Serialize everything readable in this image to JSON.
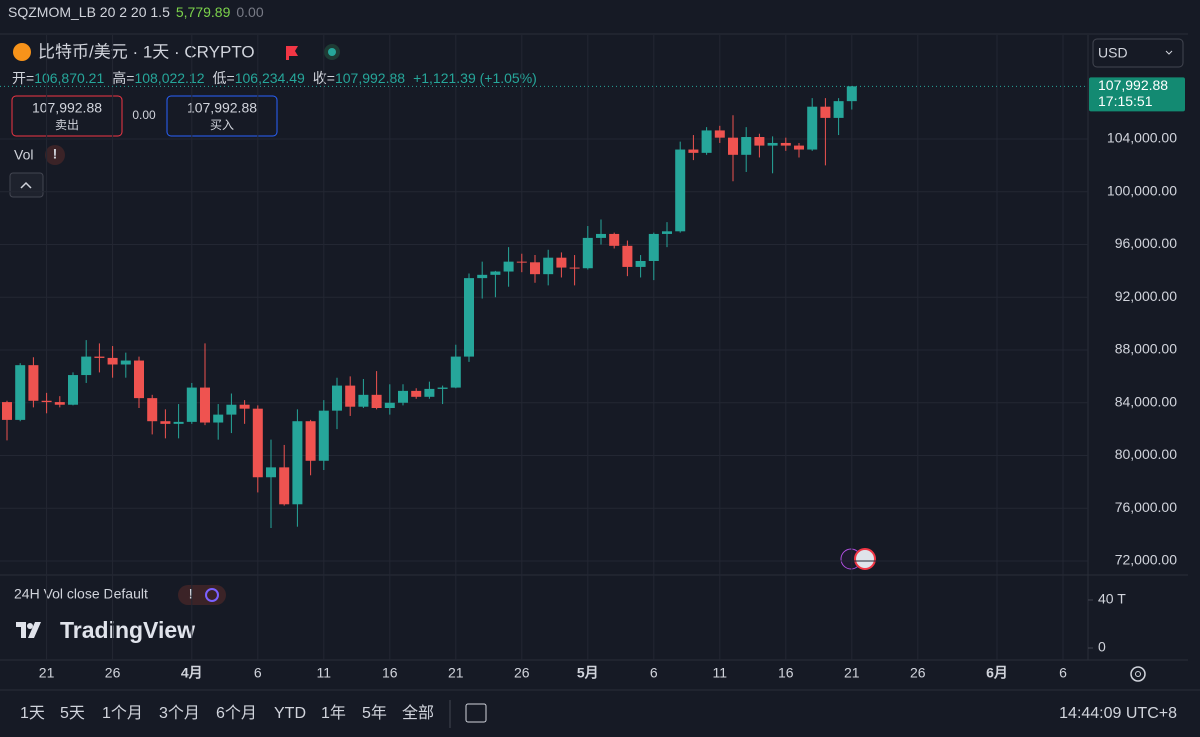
{
  "indicator": {
    "name": "SQZMOM_LB 20 2 20 1.5",
    "value1": "5,779.89",
    "value2": "0.00"
  },
  "symbol": "比特币/美元 · 1天 · CRYPTO",
  "ohlc": {
    "open_label": "开=",
    "open": "106,870.21",
    "high_label": "高=",
    "high": "108,022.12",
    "low_label": "低=",
    "low": "106,234.49",
    "close_label": "收=",
    "close": "107,992.88",
    "change": "+1,121.39 (+1.05%)"
  },
  "trade": {
    "sell_price": "107,992.88",
    "sell_label": "卖出",
    "spread": "0.00",
    "buy_price": "107,992.88",
    "buy_label": "买入"
  },
  "vol_label": "Vol",
  "currency": "USD",
  "last_price": {
    "price": "107,992.88",
    "countdown": "17:15:51"
  },
  "volume_pane": {
    "title": "24H Vol close Default",
    "ylim": [
      -10,
      60.8
    ],
    "yticks": [
      {
        "value": 40,
        "label": "40 T"
      },
      0
    ]
  },
  "brand": "TradingView",
  "ranges": [
    "1天",
    "5天",
    "1个月",
    "3个月",
    "6个月",
    "YTD",
    "1年",
    "5年",
    "全部"
  ],
  "clock": "14:44:09 UTC+8",
  "chart_data": {
    "type": "candlestick",
    "up_color": "#26a69a",
    "down_color": "#ef5350",
    "grid": true,
    "ylim": [
      70938,
      111886
    ],
    "yticks": [
      {
        "value": 72000,
        "label": "72,000.00"
      },
      {
        "value": 76000,
        "label": "76,000.00"
      },
      {
        "value": 80000,
        "label": "80,000.00"
      },
      {
        "value": 84000,
        "label": "84,000.00"
      },
      {
        "value": 88000,
        "label": "88,000.00"
      },
      {
        "value": 92000,
        "label": "92,000.00"
      },
      {
        "value": 96000,
        "label": "96,000.00"
      },
      {
        "value": 100000,
        "label": "100,000.00"
      },
      {
        "value": 104000,
        "label": "104,000.00"
      }
    ],
    "categories": [
      null,
      null,
      null,
      "21",
      null,
      null,
      null,
      null,
      "26",
      null,
      null,
      null,
      null,
      null,
      "4月",
      null,
      null,
      null,
      null,
      "6",
      null,
      null,
      null,
      null,
      "11",
      null,
      null,
      null,
      null,
      "16",
      null,
      null,
      null,
      null,
      "21",
      null,
      null,
      null,
      null,
      "26",
      null,
      null,
      null,
      null,
      "5月",
      null,
      null,
      null,
      null,
      "6",
      null,
      null,
      null,
      null,
      "11",
      null,
      null,
      null,
      null,
      "16",
      null,
      null,
      null,
      null,
      "21",
      null,
      null,
      null,
      null,
      "26",
      null,
      null,
      null,
      null,
      null,
      "6月",
      null,
      null,
      null,
      null,
      "6",
      null,
      null
    ],
    "open": [
      84050,
      82700,
      86850,
      84150,
      84050,
      83850,
      86100,
      87500,
      87400,
      86900,
      87200,
      84350,
      82600,
      82400,
      82550,
      85150,
      82500,
      83100,
      83850,
      83550,
      78350,
      79100,
      76300,
      82600,
      79600,
      83400,
      85300,
      83700,
      84600,
      83600,
      84000,
      84900,
      84450,
      85050,
      85150,
      87500,
      93450,
      93700,
      93950,
      94700,
      94650,
      93750,
      95000,
      94250,
      94200,
      96500,
      96800,
      95900,
      94300,
      94750,
      96800,
      97000,
      103200,
      102950,
      104650,
      104100,
      102800,
      104150,
      103500,
      103700,
      103500,
      103200,
      106450,
      105600,
      106870.21,
      null,
      null,
      null,
      null,
      null,
      null,
      null,
      null,
      null,
      null,
      null,
      null,
      null,
      null,
      null,
      null,
      null,
      null
    ],
    "high": [
      84150,
      87000,
      87450,
      84750,
      84500,
      86300,
      88750,
      88500,
      88300,
      87800,
      87500,
      84600,
      83500,
      83900,
      85500,
      88500,
      83900,
      84700,
      84200,
      83800,
      81200,
      80800,
      83500,
      82700,
      84200,
      85900,
      86000,
      85800,
      86400,
      85400,
      85400,
      85100,
      85600,
      85300,
      88400,
      93800,
      94700,
      94000,
      95800,
      95300,
      95200,
      95600,
      95400,
      95200,
      97400,
      97900,
      96900,
      96300,
      95200,
      96900,
      97700,
      103800,
      104300,
      104900,
      105000,
      105800,
      104900,
      104400,
      104200,
      104100,
      103700,
      107100,
      107100,
      107100,
      108022.12,
      null,
      null,
      null,
      null,
      null,
      null,
      null,
      null,
      null,
      null,
      null,
      null,
      null,
      null,
      null,
      null,
      null,
      null
    ],
    "low": [
      81150,
      82600,
      83650,
      83200,
      83650,
      83800,
      85500,
      86300,
      85900,
      85900,
      83600,
      81600,
      81300,
      81300,
      82400,
      82300,
      81200,
      81700,
      82400,
      77200,
      74500,
      76200,
      74600,
      78500,
      78900,
      82000,
      83000,
      83600,
      83500,
      83100,
      83800,
      84300,
      84300,
      83900,
      85100,
      87100,
      91900,
      92000,
      92800,
      93900,
      93100,
      92900,
      93500,
      92900,
      94100,
      96000,
      95700,
      93600,
      93500,
      93300,
      95800,
      96900,
      102400,
      102800,
      103700,
      100800,
      101500,
      102600,
      101400,
      103100,
      102600,
      103100,
      102000,
      104300,
      106234.49,
      null,
      null,
      null,
      null,
      null,
      null,
      null,
      null,
      null,
      null,
      null,
      null,
      null,
      null,
      null,
      null,
      null,
      null
    ],
    "close": [
      82700,
      86850,
      84150,
      84050,
      83850,
      86100,
      87500,
      87400,
      86900,
      87200,
      84350,
      82600,
      82400,
      82550,
      85150,
      82500,
      83100,
      83850,
      83550,
      78350,
      79100,
      76300,
      82600,
      79600,
      83400,
      85300,
      83700,
      84600,
      83600,
      84000,
      84900,
      84450,
      85050,
      85150,
      87500,
      93450,
      93700,
      93950,
      94700,
      94650,
      93750,
      95000,
      94250,
      94200,
      96500,
      96800,
      95900,
      94300,
      94750,
      96800,
      97000,
      103200,
      102950,
      104650,
      104100,
      102800,
      104150,
      103500,
      103700,
      103500,
      103200,
      106450,
      105600,
      106870.21,
      107992.88,
      null,
      null,
      null,
      null,
      null,
      null,
      null,
      null,
      null,
      null,
      null,
      null,
      null,
      null,
      null,
      null,
      null,
      null
    ]
  }
}
